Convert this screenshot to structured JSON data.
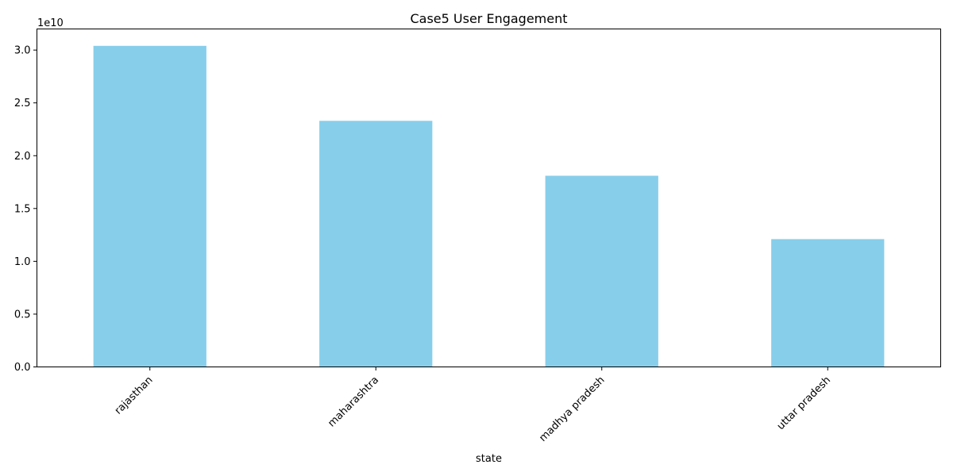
{
  "chart_data": {
    "type": "bar",
    "title": "Case5 User Engagement",
    "xlabel": "state",
    "ylabel": "",
    "categories": [
      "rajasthan",
      "maharashtra",
      "madhya pradesh",
      "uttar pradesh"
    ],
    "values": [
      30400000000,
      23300000000,
      18100000000,
      12100000000
    ],
    "ylim": [
      0,
      32000000000
    ],
    "y_ticks": [
      0,
      5000000000,
      10000000000,
      15000000000,
      20000000000,
      25000000000,
      30000000000
    ],
    "y_tick_labels": [
      "0.0",
      "0.5",
      "1.0",
      "1.5",
      "2.0",
      "2.5",
      "3.0"
    ],
    "y_offset_label": "1e10",
    "bar_color": "#87ceeb",
    "grid": false,
    "legend": "none"
  }
}
